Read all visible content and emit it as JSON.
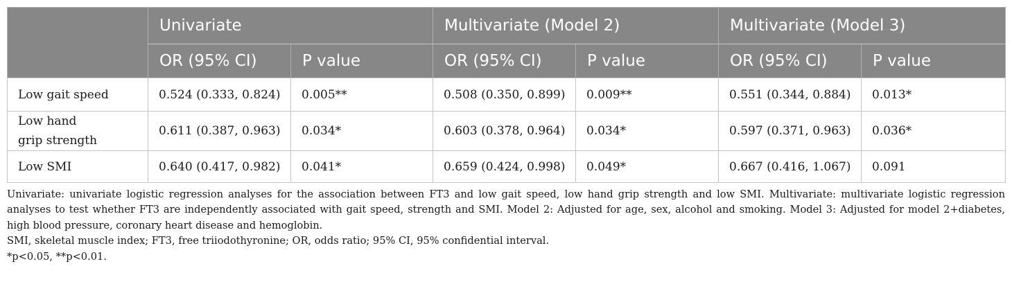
{
  "table": {
    "group_headers": [
      "",
      "Univariate",
      "Multivariate (Model 2)",
      "Multivariate (Model 3)"
    ],
    "sub_headers": [
      "OR (95% CI)",
      "P value",
      "OR (95% CI)",
      "P value",
      "OR (95% CI)",
      "P value"
    ],
    "rows": [
      {
        "label_lines": [
          "Low gait speed"
        ],
        "cells": [
          "0.524 (0.333, 0.824)",
          "0.005**",
          "0.508 (0.350, 0.899)",
          "0.009**",
          "0.551 (0.344, 0.884)",
          "0.013*"
        ]
      },
      {
        "label_lines": [
          "Low hand",
          "grip strength"
        ],
        "cells": [
          "0.611 (0.387, 0.963)",
          "0.034*",
          "0.603 (0.378, 0.964)",
          "0.034*",
          "0.597 (0.371, 0.963)",
          "0.036*"
        ]
      },
      {
        "label_lines": [
          "Low SMI"
        ],
        "cells": [
          "0.640 (0.417, 0.982)",
          "0.041*",
          "0.659 (0.424, 0.998)",
          "0.049*",
          "0.667 (0.416, 1.067)",
          "0.091"
        ]
      }
    ]
  },
  "notes": [
    "Univariate: univariate logistic regression analyses for the association between FT3 and low gait speed, low hand grip strength and low SMI. Multivariate: multivariate logistic regression analyses to test whether FT3 are independently associated with gait speed, strength and SMI. Model 2: Adjusted for age, sex, alcohol and smoking. Model 3: Adjusted for model 2+diabetes, high blood pressure, coronary heart disease and hemoglobin.",
    "SMI, skeletal muscle index; FT3, free triiodothyronine; OR, odds ratio; 95% CI, 95% confidential interval.",
    "*p<0.05, **p<0.01."
  ]
}
